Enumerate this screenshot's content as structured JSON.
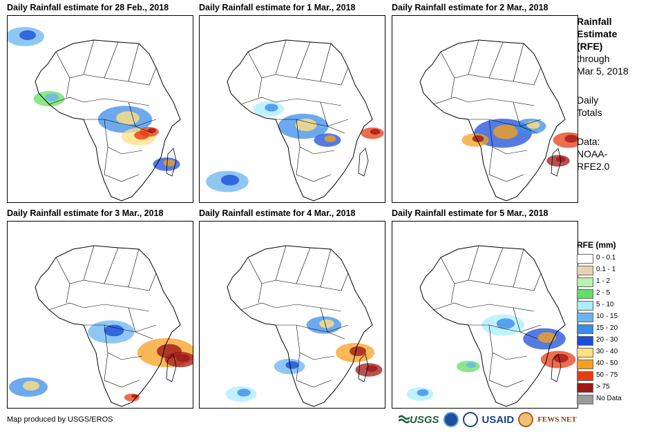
{
  "panels": [
    {
      "title": "Daily Rainfall estimate for 28 Feb., 2018"
    },
    {
      "title": "Daily Rainfall estimate for 1 Mar., 2018"
    },
    {
      "title": "Daily Rainfall estimate for 2 Mar., 2018"
    },
    {
      "title": "Daily Rainfall estimate for 3 Mar., 2018"
    },
    {
      "title": "Daily Rainfall estimate for 4 Mar., 2018"
    },
    {
      "title": "Daily Rainfall estimate for 5 Mar., 2018"
    }
  ],
  "sidebar": {
    "title_line1": "Rainfall",
    "title_line2": "Estimate",
    "title_line3": "(RFE)",
    "through": "through",
    "date": "Mar 5, 2018",
    "totals_line1": "Daily",
    "totals_line2": "Totals",
    "data_line1": "Data:",
    "data_line2": "NOAA-",
    "data_line3": "RFE2.0"
  },
  "legend": {
    "title": "RFE (mm)",
    "items": [
      {
        "label": "0 - 0.1",
        "color": "#ffffff"
      },
      {
        "label": "0.1 - 1",
        "color": "#e8d3b0"
      },
      {
        "label": "1 - 2",
        "color": "#b8f0b0"
      },
      {
        "label": "2 - 5",
        "color": "#66dd66"
      },
      {
        "label": "5 - 10",
        "color": "#aaeeff"
      },
      {
        "label": "10 - 15",
        "color": "#6ab4f0"
      },
      {
        "label": "15 - 20",
        "color": "#3c8ce8"
      },
      {
        "label": "20 - 30",
        "color": "#1c4fd8"
      },
      {
        "label": "30 - 40",
        "color": "#ffe080"
      },
      {
        "label": "40 - 50",
        "color": "#f5a020"
      },
      {
        "label": "50 - 75",
        "color": "#e83c10"
      },
      {
        "label": "> 75",
        "color": "#a01818"
      },
      {
        "label": "No Data",
        "color": "#9a9a9a"
      }
    ]
  },
  "credit": "Map produced by USGS/EROS",
  "logos": {
    "usgs": "USGS",
    "usaid": "USAID",
    "fews": "FEWS NET"
  }
}
